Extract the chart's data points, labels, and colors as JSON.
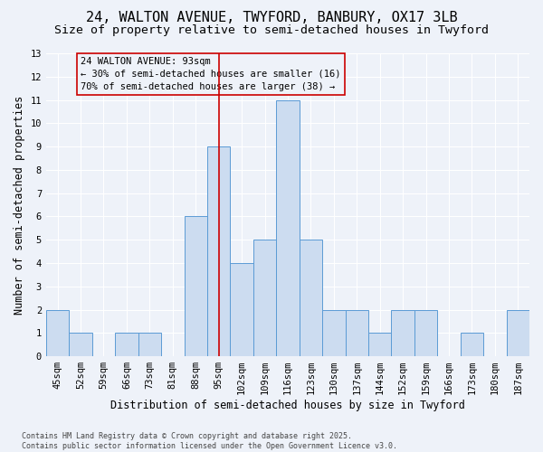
{
  "title1": "24, WALTON AVENUE, TWYFORD, BANBURY, OX17 3LB",
  "title2": "Size of property relative to semi-detached houses in Twyford",
  "xlabel": "Distribution of semi-detached houses by size in Twyford",
  "ylabel": "Number of semi-detached properties",
  "categories": [
    "45sqm",
    "52sqm",
    "59sqm",
    "66sqm",
    "73sqm",
    "81sqm",
    "88sqm",
    "95sqm",
    "102sqm",
    "109sqm",
    "116sqm",
    "123sqm",
    "130sqm",
    "137sqm",
    "144sqm",
    "152sqm",
    "159sqm",
    "166sqm",
    "173sqm",
    "180sqm",
    "187sqm"
  ],
  "values": [
    2,
    1,
    0,
    1,
    1,
    0,
    6,
    9,
    4,
    5,
    11,
    5,
    2,
    2,
    1,
    2,
    2,
    0,
    1,
    0,
    2
  ],
  "bar_color": "#ccdcf0",
  "bar_edge_color": "#5b9bd5",
  "annotation_title": "24 WALTON AVENUE: 93sqm",
  "annotation_line1": "← 30% of semi-detached houses are smaller (16)",
  "annotation_line2": "70% of semi-detached houses are larger (38) →",
  "red_color": "#cc0000",
  "red_line_index": 7,
  "ylim": [
    0,
    13
  ],
  "yticks": [
    0,
    1,
    2,
    3,
    4,
    5,
    6,
    7,
    8,
    9,
    10,
    11,
    12,
    13
  ],
  "footer1": "Contains HM Land Registry data © Crown copyright and database right 2025.",
  "footer2": "Contains public sector information licensed under the Open Government Licence v3.0.",
  "bg_color": "#eef2f9",
  "grid_color": "#ffffff",
  "title_fontsize": 11,
  "subtitle_fontsize": 9.5,
  "axis_label_fontsize": 8.5,
  "tick_fontsize": 7.5,
  "annotation_fontsize": 7.5,
  "footer_fontsize": 6
}
